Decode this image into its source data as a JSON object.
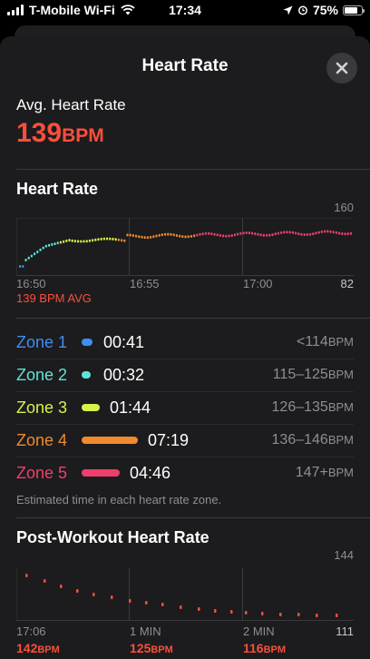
{
  "status_bar": {
    "carrier": "T-Mobile Wi-Fi",
    "time": "17:34",
    "battery": "75%",
    "battery_level": 0.75
  },
  "sheet": {
    "title": "Heart Rate"
  },
  "summary": {
    "label": "Avg. Heart Rate",
    "value": "139",
    "unit": "BPM"
  },
  "heart_rate_chart": {
    "title": "Heart Rate",
    "y_max_label": "160",
    "y_min_label": "82",
    "x_ticks": [
      "16:50",
      "16:55",
      "17:00"
    ],
    "avg_caption": "139 BPM AVG"
  },
  "zones": [
    {
      "label": "Zone 1",
      "time": "00:41",
      "range": "<114",
      "unit": "BPM",
      "color": "#3f8ef0"
    },
    {
      "label": "Zone 2",
      "time": "00:32",
      "range": "115–125",
      "unit": "BPM",
      "color": "#5ee4d6"
    },
    {
      "label": "Zone 3",
      "time": "01:44",
      "range": "126–135",
      "unit": "BPM",
      "color": "#d5f34a"
    },
    {
      "label": "Zone 4",
      "time": "07:19",
      "range": "136–146",
      "unit": "BPM",
      "color": "#f08a2e"
    },
    {
      "label": "Zone 5",
      "time": "04:46",
      "range": "147+",
      "unit": "BPM",
      "color": "#ee3f6c"
    }
  ],
  "zones_note": "Estimated time in each heart rate zone.",
  "post_workout": {
    "title": "Post-Workout Heart Rate",
    "y_max_label": "144",
    "y_min_label": "111",
    "x_labels": [
      "17:06",
      "1 MIN",
      "2 MIN"
    ],
    "values": [
      {
        "value": "142",
        "unit": "BPM"
      },
      {
        "value": "125",
        "unit": "BPM"
      },
      {
        "value": "116",
        "unit": "BPM"
      }
    ]
  },
  "colors": {
    "accent_red": "#fa4f3b",
    "secondary_text": "#8e8e93",
    "sheet_bg": "#1c1c1e"
  },
  "icons": [
    "signal-bars-icon",
    "wifi-icon",
    "location-arrow-icon",
    "alarm-icon",
    "battery-icon",
    "close-icon"
  ]
}
